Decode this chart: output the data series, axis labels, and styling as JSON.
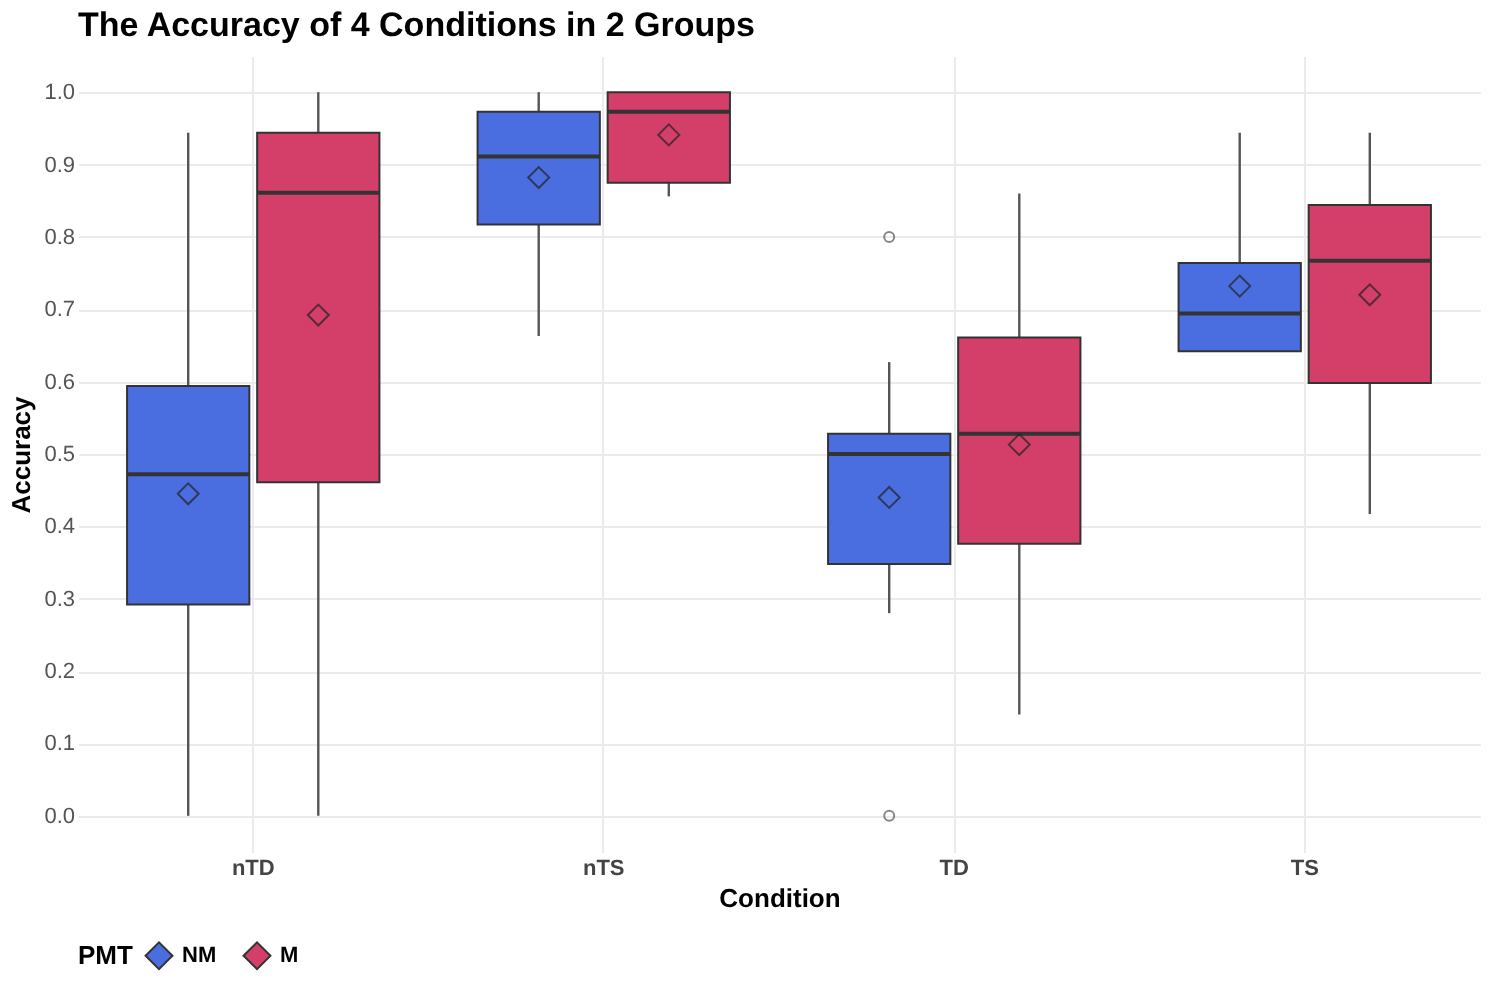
{
  "chart_data": {
    "type": "box",
    "title": "The Accuracy of 4 Conditions in 2 Groups",
    "xlabel": "Condition",
    "ylabel": "Accuracy",
    "legend_title": "PMT",
    "categories": [
      "nTD",
      "nTS",
      "TD",
      "TS"
    ],
    "series": [
      {
        "name": "NM",
        "color": "#4a6ee0",
        "boxes": [
          {
            "low": 0,
            "q1": 0.292,
            "median": 0.472,
            "q3": 0.594,
            "high": 0.944,
            "mean": 0.445
          },
          {
            "low": 0.663,
            "q1": 0.817,
            "median": 0.911,
            "q3": 0.973,
            "high": 1.0,
            "mean": 0.882
          },
          {
            "low": 0.28,
            "q1": 0.348,
            "median": 0.5,
            "q3": 0.528,
            "high": 0.627,
            "mean": 0.44,
            "outliers": [
              0.8,
              0
            ]
          },
          {
            "low": 0.642,
            "q1": 0.642,
            "median": 0.694,
            "q3": 0.764,
            "high": 0.944,
            "mean": 0.732
          }
        ]
      },
      {
        "name": "M",
        "color": "#d43f6a",
        "boxes": [
          {
            "low": 0,
            "q1": 0.461,
            "median": 0.861,
            "q3": 0.944,
            "high": 1.0,
            "mean": 0.692
          },
          {
            "low": 0.856,
            "q1": 0.875,
            "median": 0.973,
            "q3": 1.0,
            "high": 1.0,
            "mean": 0.941
          },
          {
            "low": 0.14,
            "q1": 0.376,
            "median": 0.528,
            "q3": 0.661,
            "high": 0.86,
            "mean": 0.513
          },
          {
            "low": 0.417,
            "q1": 0.598,
            "median": 0.767,
            "q3": 0.844,
            "high": 0.944,
            "mean": 0.72
          }
        ]
      }
    ],
    "ylim": [
      -0.05,
      1.05
    ],
    "yticks": [
      {
        "value": 0,
        "label": "0.0"
      },
      0.1,
      0.2,
      0.3,
      0.4,
      0.5,
      0.6,
      0.7,
      0.8,
      0.9,
      {
        "value": 1,
        "label": "1.0"
      }
    ],
    "grid": true,
    "legend": "bottom",
    "marker": "diamond"
  }
}
